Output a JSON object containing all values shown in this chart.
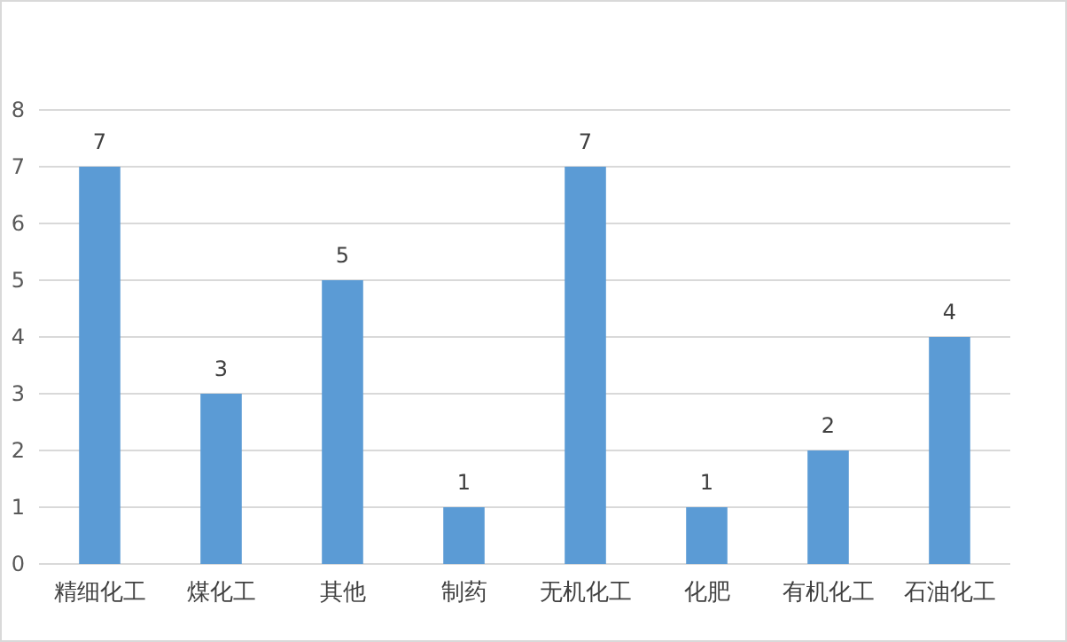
{
  "chart_data": {
    "type": "bar",
    "categories": [
      "精细化工",
      "煤化工",
      "其他",
      "制药",
      "无机化工",
      "化肥",
      "有机化工",
      "石油化工"
    ],
    "values": [
      7,
      3,
      5,
      1,
      7,
      1,
      2,
      4
    ],
    "color": "#5b9bd5",
    "ylim": [
      0,
      8
    ],
    "yticks": [
      0,
      1,
      2,
      3,
      4,
      5,
      6,
      7,
      8
    ],
    "grid": "y",
    "data_labels": true
  }
}
